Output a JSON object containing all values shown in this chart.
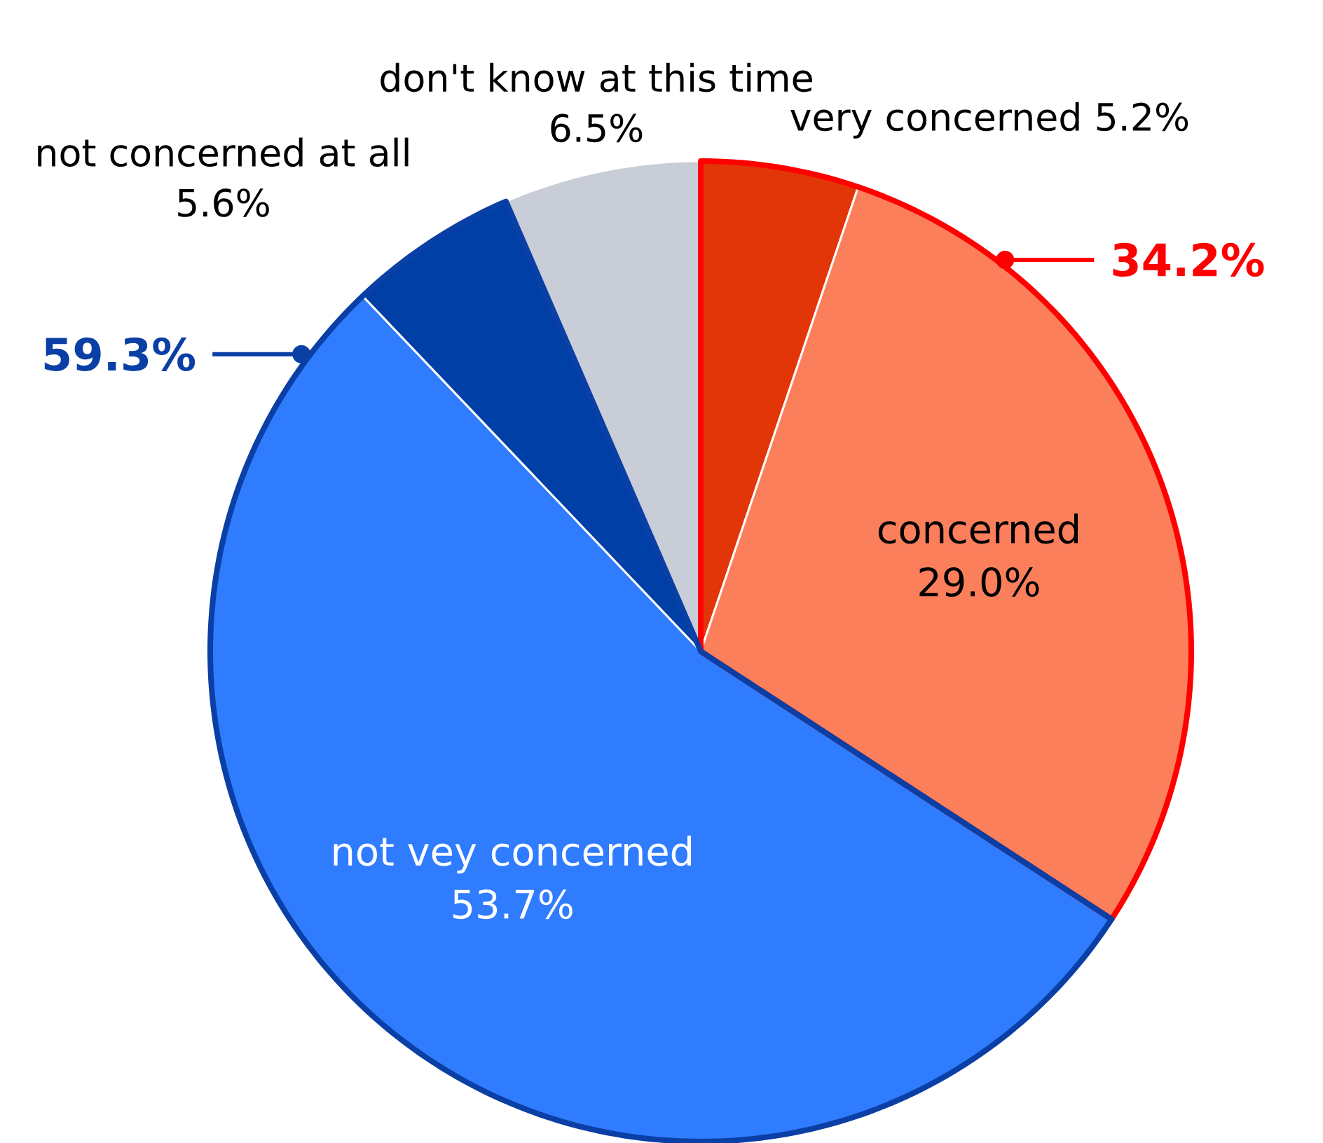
{
  "chart_data": {
    "type": "pie",
    "categories": [
      "very concerned",
      "concerned",
      "not vey concerned",
      "not concerned at all",
      "don't know at this time"
    ],
    "values": [
      5.2,
      29.0,
      53.7,
      5.6,
      6.5
    ],
    "colors": [
      "#e33608",
      "#fc7f5c",
      "#307cff",
      "#003fa5",
      "#c8cdd8"
    ],
    "value_labels": [
      "5.2%",
      "29.0%",
      "53.7%",
      "5.6%",
      "6.5%"
    ],
    "annotations": [
      "34.2%",
      "59.3%"
    ]
  }
}
